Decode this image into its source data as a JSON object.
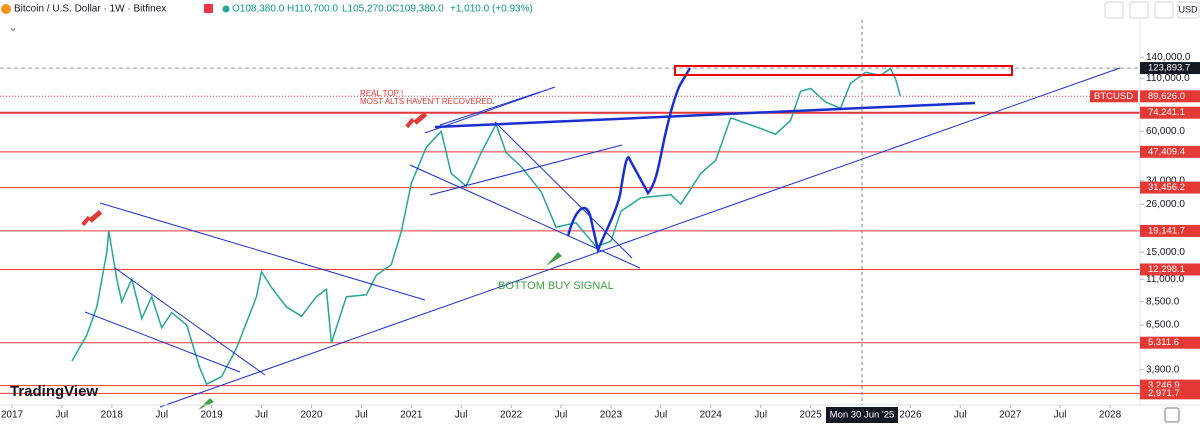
{
  "header": {
    "title": "Bitcoin / U.S. Dollar · 1W · Bitfinex",
    "open": "O108,380.0",
    "high": "H110,700.0",
    "low": "L105,270.0",
    "close": "C109,380.0",
    "change": "+1,010.0 (+0.93%)",
    "currency": "USD",
    "logo": "TradingView",
    "crosshair_label": "Mon 30 Jun '25"
  },
  "annotations": {
    "real_top": "REAL TOP !",
    "alts": "MOST ALTS HAVEN'T RECOVERED.",
    "bottom": "BOTTOM BUY SIGNAL"
  },
  "chart_data": {
    "type": "line",
    "log_scale": true,
    "color": "#26a69a",
    "x": [
      2017.6,
      2017.75,
      2017.85,
      2017.95,
      2017.97,
      2018.05,
      2018.1,
      2018.2,
      2018.3,
      2018.4,
      2018.5,
      2018.6,
      2018.75,
      2018.88,
      2018.95,
      2019.1,
      2019.25,
      2019.45,
      2019.5,
      2019.6,
      2019.75,
      2019.9,
      2020.05,
      2020.15,
      2020.2,
      2020.35,
      2020.55,
      2020.65,
      2020.8,
      2020.9,
      2021.0,
      2021.15,
      2021.3,
      2021.4,
      2021.55,
      2021.7,
      2021.85,
      2021.95,
      2022.1,
      2022.3,
      2022.45,
      2022.65,
      2022.85,
      2023.0,
      2023.1,
      2023.3,
      2023.6,
      2023.7,
      2023.9,
      2024.05,
      2024.2,
      2024.5,
      2024.65,
      2024.8,
      2024.9,
      2025.0,
      2025.15,
      2025.3,
      2025.4,
      2025.55,
      2025.7,
      2025.8,
      2025.85,
      2025.9
    ],
    "values": [
      4300,
      5800,
      8000,
      15000,
      19100,
      11000,
      8500,
      11000,
      7000,
      9000,
      6300,
      7500,
      6500,
      4000,
      3300,
      3600,
      5000,
      9000,
      12000,
      10000,
      8000,
      7200,
      9000,
      9800,
      5300,
      9000,
      9200,
      11500,
      13000,
      19000,
      33000,
      50000,
      60000,
      37000,
      32000,
      47000,
      65000,
      47000,
      40000,
      30000,
      20000,
      21000,
      16000,
      17000,
      24000,
      28000,
      29000,
      26000,
      37000,
      43000,
      70000,
      62000,
      58000,
      68000,
      95000,
      98000,
      84000,
      78000,
      104000,
      118000,
      114000,
      123000,
      110000,
      89626
    ],
    "xlim": [
      2016.88,
      2028.3
    ],
    "ylim": [
      2600,
      215000
    ],
    "xticks": [
      {
        "value": 2017,
        "label": "2017"
      },
      {
        "value": 2017.5,
        "label": "Jul"
      },
      {
        "value": 2018,
        "label": "2018"
      },
      {
        "value": 2018.5,
        "label": "Jul"
      },
      {
        "value": 2019,
        "label": "2019"
      },
      {
        "value": 2019.5,
        "label": "Jul"
      },
      {
        "value": 2020,
        "label": "2020"
      },
      {
        "value": 2020.5,
        "label": "Jul"
      },
      {
        "value": 2021,
        "label": "2021"
      },
      {
        "value": 2021.5,
        "label": "Jul"
      },
      {
        "value": 2022,
        "label": "2022"
      },
      {
        "value": 2022.5,
        "label": "Jul"
      },
      {
        "value": 2023,
        "label": "2023"
      },
      {
        "value": 2023.5,
        "label": "Jul"
      },
      {
        "value": 2024,
        "label": "2024"
      },
      {
        "value": 2024.5,
        "label": "Jul"
      },
      {
        "value": 2025,
        "label": "2025"
      },
      {
        "value": 2026,
        "label": "2026"
      },
      {
        "value": 2026.5,
        "label": "Jul"
      },
      {
        "value": 2027,
        "label": "2027"
      },
      {
        "value": 2027.5,
        "label": "Jul"
      },
      {
        "value": 2028,
        "label": "2028"
      }
    ],
    "yticks": [
      {
        "value": 140000,
        "label": "140,000.0"
      },
      {
        "value": 110000,
        "label": "110,000.0"
      },
      {
        "value": 60000,
        "label": "60,000.0"
      },
      {
        "value": 34000,
        "label": "34,000.0"
      },
      {
        "value": 26000,
        "label": "26,000.0"
      },
      {
        "value": 15000,
        "label": "15,000.0"
      },
      {
        "value": 11000,
        "label": "11,000.0"
      },
      {
        "value": 8500,
        "label": "8,500.0"
      },
      {
        "value": 6500,
        "label": "6,500.0"
      },
      {
        "value": 3900,
        "label": "3,900.0"
      }
    ],
    "levels": [
      {
        "value": 123893.7,
        "label": "123,893.7"
      },
      {
        "value": 74241.1,
        "label": "74,241.1"
      },
      {
        "value": 47409.4,
        "label": "47,409.4"
      },
      {
        "value": 31456.2,
        "label": "31,456.2"
      },
      {
        "value": 19141.7,
        "label": "19,141.7"
      },
      {
        "value": 12298.1,
        "label": "12,298.1"
      },
      {
        "value": 5311.6,
        "label": "5,311.6"
      },
      {
        "value": 3246.9,
        "label": "3,246.9"
      },
      {
        "value": 2971.7,
        "label": "2,971.7"
      }
    ],
    "level_color": "#e53935",
    "symbol_tag": "BTCUSD",
    "last_price": {
      "value": 89626,
      "label": "89,626.0"
    }
  }
}
